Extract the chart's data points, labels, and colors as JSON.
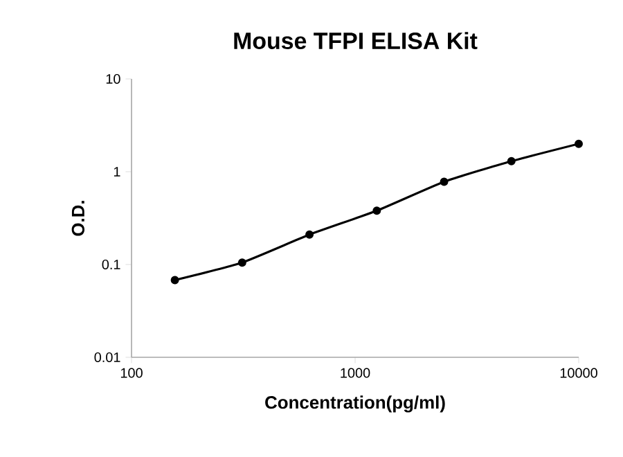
{
  "chart_data": {
    "type": "line",
    "title": "Mouse TFPI ELISA Kit",
    "xlabel": "Concentration(pg/ml)",
    "ylabel": "O.D.",
    "x": [
      156.25,
      312.5,
      625,
      1250,
      2500,
      5000,
      10000
    ],
    "series": [
      {
        "color": "#000000",
        "values": [
          0.068,
          0.105,
          0.21,
          0.38,
          0.78,
          1.3,
          2.0
        ]
      }
    ],
    "log": "xy",
    "xlim": [
      100,
      10000
    ],
    "ylim": [
      0.01,
      10
    ],
    "xticks": [
      100,
      1000,
      10000
    ],
    "yticks": [
      0.01,
      0.1,
      1,
      10
    ],
    "marker": "circle",
    "line_style": "solid"
  }
}
